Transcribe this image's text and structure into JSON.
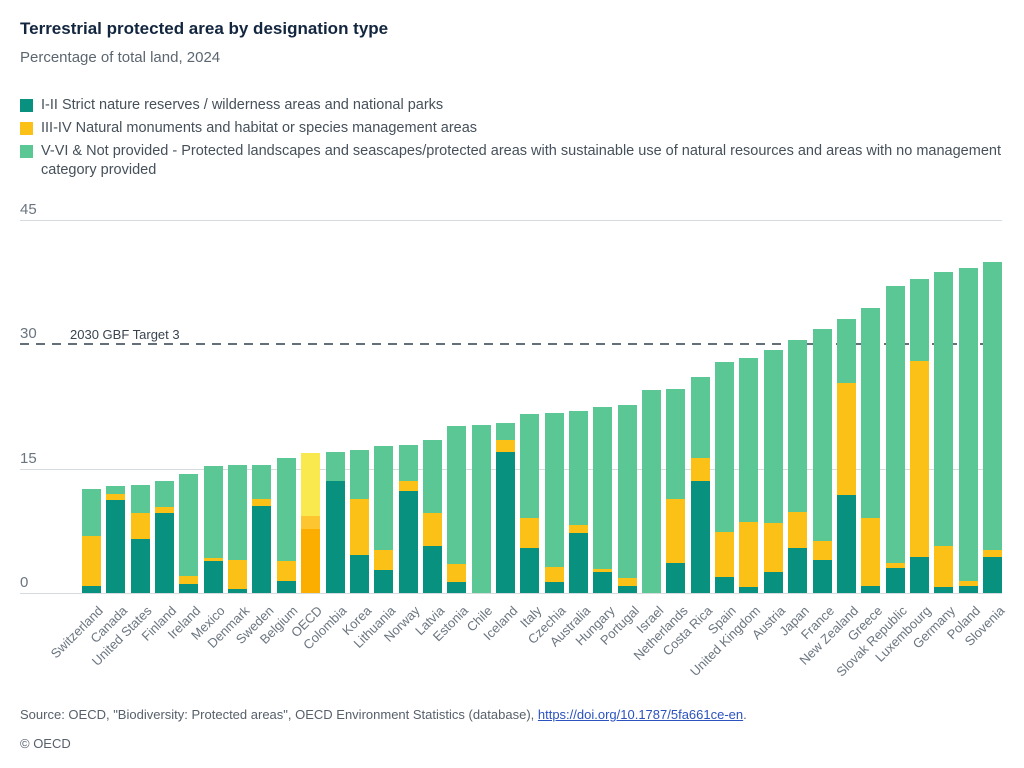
{
  "header": {
    "title": "Terrestrial protected area by designation type",
    "subtitle": "Percentage of total land, 2024"
  },
  "chart_data": {
    "type": "bar",
    "stacked": true,
    "title": "Terrestrial protected area by designation type",
    "subtitle": "Percentage of total land, 2024",
    "ylabel": "",
    "xlabel": "",
    "ylim": [
      0,
      45
    ],
    "yticks": [
      0,
      15,
      30,
      45
    ],
    "grid": "horizontal",
    "legend_position": "top-left",
    "target_line": {
      "value": 30,
      "label": "2030 GBF Target 3"
    },
    "categories": [
      "Switzerland",
      "Canada",
      "United States",
      "Finland",
      "Ireland",
      "Mexico",
      "Denmark",
      "Sweden",
      "Belgium",
      "OECD",
      "Colombia",
      "Korea",
      "Lithuania",
      "Norway",
      "Latvia",
      "Estonia",
      "Chile",
      "Iceland",
      "Italy",
      "Czechia",
      "Australia",
      "Hungary",
      "Portugal",
      "Israel",
      "Netherlands",
      "Costa Rica",
      "Spain",
      "United Kingdom",
      "Austria",
      "Japan",
      "France",
      "New Zealand",
      "Greece",
      "Slovak Republic",
      "Luxembourg",
      "Germany",
      "Poland",
      "Slovenia"
    ],
    "series": [
      {
        "name": "I-II Strict nature reserves / wilderness areas and national parks",
        "color": "#07917e",
        "values": [
          0.9,
          11.2,
          6.5,
          9.7,
          1.1,
          3.9,
          0.5,
          10.5,
          1.5,
          7.7,
          13.5,
          4.6,
          2.8,
          12.3,
          5.7,
          1.3,
          0,
          17.0,
          5.4,
          1.3,
          7.2,
          2.5,
          0.9,
          0,
          3.6,
          13.5,
          1.9,
          0.7,
          2.5,
          5.4,
          4.0,
          11.8,
          0.9,
          3.0,
          4.4,
          0.7,
          0.9,
          4.4
        ]
      },
      {
        "name": "III-IV Natural monuments and habitat or species management areas",
        "color": "#fbc117",
        "values": [
          6.0,
          0.7,
          3.1,
          0.7,
          1.0,
          0.3,
          3.5,
          0.8,
          2.4,
          1.6,
          0,
          6.7,
          2.4,
          1.2,
          3.9,
          2.2,
          0,
          1.5,
          3.6,
          1.8,
          1.0,
          0.4,
          0.9,
          0,
          7.7,
          2.8,
          5.4,
          7.9,
          5.9,
          4.4,
          2.3,
          13.5,
          8.1,
          0.6,
          23.6,
          5.0,
          0.6,
          0.8
        ]
      },
      {
        "name": "V-VI & Not provided - Protected landscapes and seascapes/protected areas with sustainable use of natural resources and areas with no management category provided",
        "color": "#5bc795",
        "values": [
          5.6,
          1.0,
          3.4,
          3.1,
          12.3,
          11.1,
          11.4,
          4.2,
          12.4,
          7.6,
          3.5,
          6.0,
          12.5,
          4.3,
          8.8,
          16.6,
          20.3,
          2.0,
          12.6,
          18.6,
          13.8,
          19.5,
          20.9,
          24.5,
          13.3,
          9.7,
          20.6,
          19.7,
          20.9,
          20.7,
          25.5,
          7.8,
          25.4,
          33.4,
          9.9,
          33.0,
          37.7,
          34.7
        ]
      }
    ],
    "highlight": {
      "category": "OECD",
      "segment_colors": [
        "#fbad00",
        "#fdc630",
        "#f9e94e"
      ]
    }
  },
  "footer": {
    "source_prefix": "Source: OECD, \"Biodiversity: Protected areas\", OECD Environment Statistics (database), ",
    "source_link": "https://doi.org/10.1787/5fa661ce-en",
    "source_suffix": ".",
    "copyright": "© OECD"
  }
}
